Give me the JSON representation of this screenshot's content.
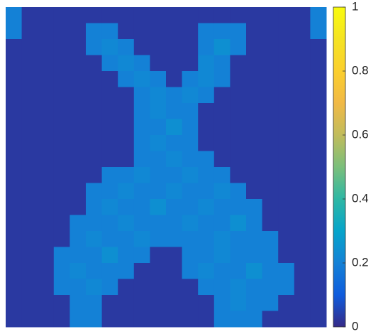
{
  "chart_data": {
    "type": "heatmap",
    "colormap": "parula",
    "zlim": [
      0,
      1
    ],
    "zticks": [
      0,
      0.2,
      0.4,
      0.6,
      0.8,
      1
    ],
    "z": [
      [
        0.2,
        0.03,
        0.03,
        0.03,
        0.03,
        0.03,
        0.03,
        0.03,
        0.03,
        0.03,
        0.03,
        0.03,
        0.03,
        0.03,
        0.03,
        0.03,
        0.03,
        0.03,
        0.03,
        0.2
      ],
      [
        0.2,
        0.03,
        0.03,
        0.03,
        0.03,
        0.2,
        0.2,
        0.03,
        0.03,
        0.03,
        0.03,
        0.03,
        0.2,
        0.2,
        0.2,
        0.03,
        0.03,
        0.03,
        0.03,
        0.2
      ],
      [
        0.03,
        0.03,
        0.03,
        0.03,
        0.03,
        0.2,
        0.22,
        0.2,
        0.03,
        0.03,
        0.03,
        0.03,
        0.2,
        0.24,
        0.2,
        0.03,
        0.03,
        0.03,
        0.03,
        0.03
      ],
      [
        0.03,
        0.03,
        0.03,
        0.03,
        0.03,
        0.03,
        0.2,
        0.22,
        0.2,
        0.03,
        0.03,
        0.03,
        0.22,
        0.2,
        0.03,
        0.03,
        0.03,
        0.03,
        0.03,
        0.03
      ],
      [
        0.03,
        0.03,
        0.03,
        0.03,
        0.03,
        0.03,
        0.03,
        0.2,
        0.22,
        0.2,
        0.03,
        0.2,
        0.22,
        0.2,
        0.03,
        0.03,
        0.03,
        0.03,
        0.03,
        0.03
      ],
      [
        0.03,
        0.03,
        0.03,
        0.03,
        0.03,
        0.03,
        0.03,
        0.03,
        0.2,
        0.22,
        0.2,
        0.22,
        0.2,
        0.03,
        0.03,
        0.03,
        0.03,
        0.03,
        0.03,
        0.03
      ],
      [
        0.03,
        0.03,
        0.03,
        0.03,
        0.03,
        0.03,
        0.03,
        0.03,
        0.2,
        0.22,
        0.2,
        0.2,
        0.03,
        0.03,
        0.03,
        0.03,
        0.03,
        0.03,
        0.03,
        0.03
      ],
      [
        0.03,
        0.03,
        0.03,
        0.03,
        0.03,
        0.03,
        0.03,
        0.03,
        0.2,
        0.2,
        0.24,
        0.2,
        0.03,
        0.03,
        0.03,
        0.03,
        0.03,
        0.03,
        0.03,
        0.03
      ],
      [
        0.03,
        0.03,
        0.03,
        0.03,
        0.03,
        0.03,
        0.03,
        0.03,
        0.2,
        0.22,
        0.2,
        0.2,
        0.03,
        0.03,
        0.03,
        0.03,
        0.03,
        0.03,
        0.03,
        0.03
      ],
      [
        0.03,
        0.03,
        0.03,
        0.03,
        0.03,
        0.03,
        0.03,
        0.03,
        0.2,
        0.2,
        0.22,
        0.2,
        0.2,
        0.03,
        0.03,
        0.03,
        0.03,
        0.03,
        0.03,
        0.03
      ],
      [
        0.03,
        0.03,
        0.03,
        0.03,
        0.03,
        0.03,
        0.2,
        0.2,
        0.22,
        0.2,
        0.2,
        0.22,
        0.2,
        0.2,
        0.03,
        0.03,
        0.03,
        0.03,
        0.03,
        0.03
      ],
      [
        0.03,
        0.03,
        0.03,
        0.03,
        0.03,
        0.2,
        0.2,
        0.22,
        0.2,
        0.2,
        0.22,
        0.2,
        0.2,
        0.22,
        0.2,
        0.03,
        0.03,
        0.03,
        0.03,
        0.03
      ],
      [
        0.03,
        0.03,
        0.03,
        0.03,
        0.03,
        0.2,
        0.22,
        0.2,
        0.2,
        0.24,
        0.2,
        0.2,
        0.22,
        0.2,
        0.2,
        0.2,
        0.03,
        0.03,
        0.03,
        0.03
      ],
      [
        0.03,
        0.03,
        0.03,
        0.03,
        0.2,
        0.2,
        0.2,
        0.22,
        0.2,
        0.2,
        0.2,
        0.22,
        0.2,
        0.2,
        0.24,
        0.2,
        0.03,
        0.03,
        0.03,
        0.03
      ],
      [
        0.03,
        0.03,
        0.03,
        0.03,
        0.2,
        0.22,
        0.2,
        0.2,
        0.22,
        0.2,
        0.2,
        0.2,
        0.2,
        0.22,
        0.2,
        0.2,
        0.2,
        0.03,
        0.03,
        0.03
      ],
      [
        0.03,
        0.03,
        0.03,
        0.2,
        0.2,
        0.2,
        0.24,
        0.2,
        0.2,
        0.03,
        0.03,
        0.2,
        0.2,
        0.22,
        0.2,
        0.2,
        0.2,
        0.03,
        0.03,
        0.03
      ],
      [
        0.03,
        0.03,
        0.03,
        0.2,
        0.22,
        0.2,
        0.2,
        0.2,
        0.03,
        0.03,
        0.03,
        0.2,
        0.22,
        0.2,
        0.2,
        0.24,
        0.2,
        0.2,
        0.03,
        0.03
      ],
      [
        0.03,
        0.03,
        0.03,
        0.2,
        0.2,
        0.22,
        0.2,
        0.03,
        0.03,
        0.03,
        0.03,
        0.03,
        0.2,
        0.2,
        0.22,
        0.2,
        0.2,
        0.2,
        0.03,
        0.03
      ],
      [
        0.03,
        0.03,
        0.03,
        0.03,
        0.2,
        0.2,
        0.03,
        0.03,
        0.03,
        0.03,
        0.03,
        0.03,
        0.03,
        0.2,
        0.22,
        0.2,
        0.2,
        0.03,
        0.03,
        0.03
      ],
      [
        0.03,
        0.03,
        0.03,
        0.03,
        0.2,
        0.2,
        0.03,
        0.03,
        0.03,
        0.03,
        0.03,
        0.03,
        0.03,
        0.2,
        0.2,
        0.2,
        0.03,
        0.03,
        0.03,
        0.03
      ]
    ]
  }
}
